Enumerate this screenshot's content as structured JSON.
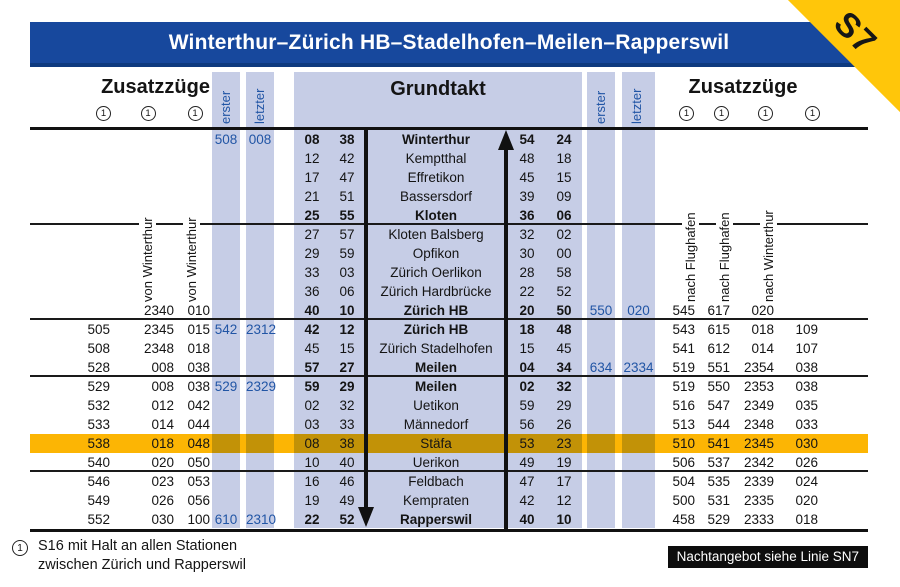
{
  "badge": {
    "label": "S7"
  },
  "title": "Winterthur–Zürich HB–Stadelhofen–Meilen–Rapperswil",
  "header": {
    "zusatzzuege_left": "Zusatzzüge",
    "zusatzzuege_right": "Zusatzzüge",
    "grundtakt": "Grundtakt",
    "erster": "erster",
    "letzter": "letzter",
    "left_markers": [
      "1",
      "1",
      "1"
    ],
    "right_markers": [
      "1",
      "1",
      "1",
      "1"
    ]
  },
  "rotated_labels": {
    "left": [
      "von Winterthur",
      "von Winterthur"
    ],
    "right": [
      "nach Flughafen",
      "nach Flughafen",
      "nach Winterthur"
    ]
  },
  "table": {
    "rows": [
      {
        "station": "Winterthur",
        "z": [
          "",
          "",
          ""
        ],
        "e": "508",
        "l": "008",
        "dep": [
          "08",
          "38"
        ],
        "arr": [
          "54",
          "24"
        ],
        "er": "",
        "lr": "",
        "zr": [
          "",
          "",
          "",
          ""
        ],
        "bold": true,
        "highlight": false,
        "section_end": false
      },
      {
        "station": "Kemptthal",
        "z": [
          "",
          "",
          ""
        ],
        "e": "",
        "l": "",
        "dep": [
          "12",
          "42"
        ],
        "arr": [
          "48",
          "18"
        ],
        "er": "",
        "lr": "",
        "zr": [
          "",
          "",
          "",
          ""
        ],
        "bold": false,
        "highlight": false,
        "section_end": false
      },
      {
        "station": "Effretikon",
        "z": [
          "",
          "",
          ""
        ],
        "e": "",
        "l": "",
        "dep": [
          "17",
          "47"
        ],
        "arr": [
          "45",
          "15"
        ],
        "er": "",
        "lr": "",
        "zr": [
          "",
          "",
          "",
          ""
        ],
        "bold": false,
        "highlight": false,
        "section_end": false
      },
      {
        "station": "Bassersdorf",
        "z": [
          "",
          "",
          ""
        ],
        "e": "",
        "l": "",
        "dep": [
          "21",
          "51"
        ],
        "arr": [
          "39",
          "09"
        ],
        "er": "",
        "lr": "",
        "zr": [
          "",
          "",
          "",
          ""
        ],
        "bold": false,
        "highlight": false,
        "section_end": false
      },
      {
        "station": "Kloten",
        "z": [
          "",
          "",
          ""
        ],
        "e": "",
        "l": "",
        "dep": [
          "25",
          "55"
        ],
        "arr": [
          "36",
          "06"
        ],
        "er": "",
        "lr": "",
        "zr": [
          "",
          "",
          "",
          ""
        ],
        "bold": true,
        "highlight": false,
        "section_end": true
      },
      {
        "station": "Kloten Balsberg",
        "z": [
          "",
          "",
          ""
        ],
        "e": "",
        "l": "",
        "dep": [
          "27",
          "57"
        ],
        "arr": [
          "32",
          "02"
        ],
        "er": "",
        "lr": "",
        "zr": [
          "",
          "",
          "",
          ""
        ],
        "bold": false,
        "highlight": false,
        "section_end": false
      },
      {
        "station": "Opfikon",
        "z": [
          "",
          "",
          ""
        ],
        "e": "",
        "l": "",
        "dep": [
          "29",
          "59"
        ],
        "arr": [
          "30",
          "00"
        ],
        "er": "",
        "lr": "",
        "zr": [
          "",
          "",
          "",
          ""
        ],
        "bold": false,
        "highlight": false,
        "section_end": false
      },
      {
        "station": "Zürich Oerlikon",
        "z": [
          "",
          "",
          ""
        ],
        "e": "",
        "l": "",
        "dep": [
          "33",
          "03"
        ],
        "arr": [
          "28",
          "58"
        ],
        "er": "",
        "lr": "",
        "zr": [
          "",
          "",
          "",
          ""
        ],
        "bold": false,
        "highlight": false,
        "section_end": false
      },
      {
        "station": "Zürich Hardbrücke",
        "z": [
          "",
          "",
          ""
        ],
        "e": "",
        "l": "",
        "dep": [
          "36",
          "06"
        ],
        "arr": [
          "22",
          "52"
        ],
        "er": "",
        "lr": "",
        "zr": [
          "",
          "",
          "",
          ""
        ],
        "bold": false,
        "highlight": false,
        "section_end": false
      },
      {
        "station": "Zürich HB",
        "z": [
          "",
          "2340",
          "010"
        ],
        "e": "",
        "l": "",
        "dep": [
          "40",
          "10"
        ],
        "arr": [
          "20",
          "50"
        ],
        "er": "550",
        "lr": "020",
        "zr": [
          "545",
          "617",
          "020",
          ""
        ],
        "bold": true,
        "highlight": false,
        "section_end": true
      },
      {
        "station": "Zürich HB",
        "z": [
          "505",
          "2345",
          "015"
        ],
        "e": "542",
        "l": "2312",
        "dep": [
          "42",
          "12"
        ],
        "arr": [
          "18",
          "48"
        ],
        "er": "",
        "lr": "",
        "zr": [
          "543",
          "615",
          "018",
          "109"
        ],
        "bold": true,
        "highlight": false,
        "section_end": false
      },
      {
        "station": "Zürich Stadelhofen",
        "z": [
          "508",
          "2348",
          "018"
        ],
        "e": "",
        "l": "",
        "dep": [
          "45",
          "15"
        ],
        "arr": [
          "15",
          "45"
        ],
        "er": "",
        "lr": "",
        "zr": [
          "541",
          "612",
          "014",
          "107"
        ],
        "bold": false,
        "highlight": false,
        "section_end": false
      },
      {
        "station": "Meilen",
        "z": [
          "528",
          "008",
          "038"
        ],
        "e": "",
        "l": "",
        "dep": [
          "57",
          "27"
        ],
        "arr": [
          "04",
          "34"
        ],
        "er": "634",
        "lr": "2334",
        "zr": [
          "519",
          "551",
          "2354",
          "038"
        ],
        "bold": true,
        "highlight": false,
        "section_end": true
      },
      {
        "station": "Meilen",
        "z": [
          "529",
          "008",
          "038"
        ],
        "e": "529",
        "l": "2329",
        "dep": [
          "59",
          "29"
        ],
        "arr": [
          "02",
          "32"
        ],
        "er": "",
        "lr": "",
        "zr": [
          "519",
          "550",
          "2353",
          "038"
        ],
        "bold": true,
        "highlight": false,
        "section_end": false
      },
      {
        "station": "Uetikon",
        "z": [
          "532",
          "012",
          "042"
        ],
        "e": "",
        "l": "",
        "dep": [
          "02",
          "32"
        ],
        "arr": [
          "59",
          "29"
        ],
        "er": "",
        "lr": "",
        "zr": [
          "516",
          "547",
          "2349",
          "035"
        ],
        "bold": false,
        "highlight": false,
        "section_end": false
      },
      {
        "station": "Männedorf",
        "z": [
          "533",
          "014",
          "044"
        ],
        "e": "",
        "l": "",
        "dep": [
          "03",
          "33"
        ],
        "arr": [
          "56",
          "26"
        ],
        "er": "",
        "lr": "",
        "zr": [
          "513",
          "544",
          "2348",
          "033"
        ],
        "bold": false,
        "highlight": false,
        "section_end": false
      },
      {
        "station": "Stäfa",
        "z": [
          "538",
          "018",
          "048"
        ],
        "e": "",
        "l": "",
        "dep": [
          "08",
          "38"
        ],
        "arr": [
          "53",
          "23"
        ],
        "er": "",
        "lr": "",
        "zr": [
          "510",
          "541",
          "2345",
          "030"
        ],
        "bold": false,
        "highlight": true,
        "section_end": false
      },
      {
        "station": "Uerikon",
        "z": [
          "540",
          "020",
          "050"
        ],
        "e": "",
        "l": "",
        "dep": [
          "10",
          "40"
        ],
        "arr": [
          "49",
          "19"
        ],
        "er": "",
        "lr": "",
        "zr": [
          "506",
          "537",
          "2342",
          "026"
        ],
        "bold": false,
        "highlight": false,
        "section_end": true
      },
      {
        "station": "Feldbach",
        "z": [
          "546",
          "023",
          "053"
        ],
        "e": "",
        "l": "",
        "dep": [
          "16",
          "46"
        ],
        "arr": [
          "47",
          "17"
        ],
        "er": "",
        "lr": "",
        "zr": [
          "504",
          "535",
          "2339",
          "024"
        ],
        "bold": false,
        "highlight": false,
        "section_end": false
      },
      {
        "station": "Kempraten",
        "z": [
          "549",
          "026",
          "056"
        ],
        "e": "",
        "l": "",
        "dep": [
          "19",
          "49"
        ],
        "arr": [
          "42",
          "12"
        ],
        "er": "",
        "lr": "",
        "zr": [
          "500",
          "531",
          "2335",
          "020"
        ],
        "bold": false,
        "highlight": false,
        "section_end": false
      },
      {
        "station": "Rapperswil",
        "z": [
          "552",
          "030",
          "100"
        ],
        "e": "610",
        "l": "2310",
        "dep": [
          "22",
          "52"
        ],
        "arr": [
          "40",
          "10"
        ],
        "er": "",
        "lr": "",
        "zr": [
          "458",
          "529",
          "2333",
          "018"
        ],
        "bold": true,
        "highlight": false,
        "section_end": false
      }
    ]
  },
  "footer": {
    "marker": "1",
    "note_line1": "S16 mit Halt an allen Stationen",
    "note_line2": "zwischen Zürich und Rapperswil",
    "night_note": "Nachtangebot siehe Linie SN7"
  },
  "colors": {
    "header_blue": "#17489d",
    "band_blue": "#c6cde6",
    "highlight_yellow": "#fcb504",
    "highlight_band_yellow": "#c29207",
    "badge_yellow": "#ffc60a",
    "first_last_blue": "#2155a5"
  }
}
